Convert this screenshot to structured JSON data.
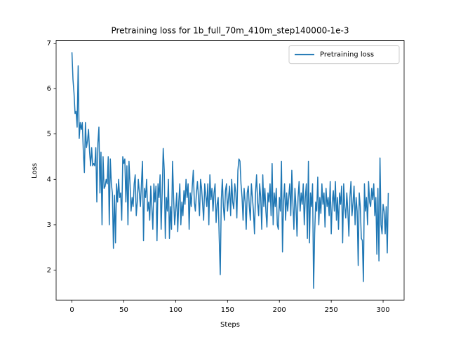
{
  "chart_data": {
    "type": "line",
    "title": "Pretraining loss for 1b_full_70m_410m_step140000-1e-3",
    "x_label": "Steps",
    "y_label": "Loss",
    "x": [
      0,
      1,
      2,
      3,
      4,
      5,
      6,
      7,
      8,
      9,
      10,
      11,
      12,
      13,
      14,
      15,
      16,
      17,
      18,
      19,
      20,
      21,
      22,
      23,
      24,
      25,
      26,
      27,
      28,
      29,
      30,
      31,
      32,
      33,
      34,
      35,
      36,
      37,
      38,
      39,
      40,
      41,
      42,
      43,
      44,
      45,
      46,
      47,
      48,
      49,
      50,
      51,
      52,
      53,
      54,
      55,
      56,
      57,
      58,
      59,
      60,
      61,
      62,
      63,
      64,
      65,
      66,
      67,
      68,
      69,
      70,
      71,
      72,
      73,
      74,
      75,
      76,
      77,
      78,
      79,
      80,
      81,
      82,
      83,
      84,
      85,
      86,
      87,
      88,
      89,
      90,
      91,
      92,
      93,
      94,
      95,
      96,
      97,
      98,
      99,
      100,
      101,
      102,
      103,
      104,
      105,
      106,
      107,
      108,
      109,
      110,
      111,
      112,
      113,
      114,
      115,
      116,
      117,
      118,
      119,
      120,
      121,
      122,
      123,
      124,
      125,
      126,
      127,
      128,
      129,
      130,
      131,
      132,
      133,
      134,
      135,
      136,
      137,
      138,
      139,
      140,
      141,
      142,
      143,
      144,
      145,
      146,
      147,
      148,
      149,
      150,
      151,
      152,
      153,
      154,
      155,
      156,
      157,
      158,
      159,
      160,
      161,
      162,
      163,
      164,
      165,
      166,
      167,
      168,
      169,
      170,
      171,
      172,
      173,
      174,
      175,
      176,
      177,
      178,
      179,
      180,
      181,
      182,
      183,
      184,
      185,
      186,
      187,
      188,
      189,
      190,
      191,
      192,
      193,
      194,
      195,
      196,
      197,
      198,
      199,
      200,
      201,
      202,
      203,
      204,
      205,
      206,
      207,
      208,
      209,
      210,
      211,
      212,
      213,
      214,
      215,
      216,
      217,
      218,
      219,
      220,
      221,
      222,
      223,
      224,
      225,
      226,
      227,
      228,
      229,
      230,
      231,
      232,
      233,
      234,
      235,
      236,
      237,
      238,
      239,
      240,
      241,
      242,
      243,
      244,
      245,
      246,
      247,
      248,
      249,
      250,
      251,
      252,
      253,
      254,
      255,
      256,
      257,
      258,
      259,
      260,
      261,
      262,
      263,
      264,
      265,
      266,
      267,
      268,
      269,
      270,
      271,
      272,
      273,
      274,
      275,
      276,
      277,
      278,
      279,
      280,
      281,
      282,
      283,
      284,
      285,
      286,
      287,
      288,
      289,
      290,
      291,
      292,
      293,
      294,
      295,
      296,
      297,
      298,
      299,
      300,
      301,
      302,
      303,
      304,
      305
    ],
    "series": [
      {
        "name": "Pretraining loss",
        "color": "#1f77b4",
        "values": [
          6.8,
          6.2,
          5.9,
          5.45,
          5.5,
          5.15,
          6.5,
          4.9,
          5.25,
          5.1,
          5.25,
          4.6,
          4.15,
          5.25,
          4.7,
          4.85,
          5.1,
          4.6,
          4.3,
          4.7,
          4.3,
          4.35,
          4.3,
          4.7,
          3.5,
          4.8,
          5.15,
          3.7,
          4.6,
          3.0,
          4.5,
          3.8,
          3.85,
          4.0,
          3.9,
          4.5,
          3.0,
          4.45,
          3.9,
          3.7,
          2.48,
          3.65,
          2.6,
          3.9,
          3.5,
          4.0,
          3.6,
          3.7,
          3.1,
          4.5,
          4.35,
          4.45,
          3.5,
          4.3,
          3.0,
          4.4,
          3.9,
          3.3,
          3.6,
          3.4,
          3.9,
          4.1,
          3.2,
          3.5,
          4.0,
          3.7,
          3.4,
          3.9,
          4.4,
          2.65,
          3.8,
          3.6,
          4.0,
          3.3,
          3.5,
          3.1,
          3.85,
          3.4,
          2.9,
          3.9,
          3.5,
          3.85,
          2.65,
          3.9,
          3.6,
          4.1,
          2.9,
          3.7,
          4.68,
          4.2,
          2.7,
          3.6,
          3.3,
          4.0,
          2.7,
          3.4,
          2.9,
          4.4,
          3.6,
          3.0,
          3.3,
          3.7,
          2.85,
          3.5,
          3.9,
          3.0,
          3.5,
          3.2,
          3.75,
          3.45,
          4.0,
          3.6,
          3.9,
          2.9,
          3.7,
          3.4,
          3.85,
          4.2,
          3.5,
          3.3,
          3.7,
          3.95,
          3.6,
          3.2,
          4.0,
          3.8,
          3.45,
          3.1,
          3.9,
          3.65,
          3.4,
          3.9,
          3.0,
          4.1,
          3.55,
          3.8,
          3.3,
          3.7,
          3.9,
          3.05,
          3.45,
          3.6,
          2.7,
          1.9,
          3.55,
          4.0,
          3.4,
          3.1,
          3.75,
          3.9,
          3.3,
          3.6,
          3.85,
          3.2,
          4.0,
          3.5,
          3.35,
          3.9,
          3.7,
          3.15,
          4.2,
          4.45,
          4.4,
          3.9,
          3.6,
          3.1,
          3.8,
          3.5,
          2.9,
          3.7,
          3.85,
          3.4,
          3.1,
          3.9,
          3.6,
          3.3,
          2.8,
          3.7,
          4.1,
          3.5,
          3.2,
          3.9,
          3.6,
          2.9,
          4.1,
          3.4,
          3.8,
          3.3,
          2.95,
          3.7,
          3.5,
          3.9,
          3.2,
          4.35,
          3.0,
          3.7,
          3.4,
          3.8,
          3.0,
          2.9,
          3.6,
          3.3,
          4.4,
          2.4,
          3.5,
          3.9,
          3.1,
          3.7,
          3.3,
          3.6,
          3.9,
          3.2,
          4.2,
          3.5,
          2.9,
          3.8,
          3.4,
          2.75,
          3.6,
          3.95,
          3.3,
          3.7,
          3.45,
          3.9,
          3.0,
          3.6,
          3.9,
          2.7,
          4.4,
          2.6,
          3.7,
          3.4,
          3.9,
          1.6,
          2.8,
          3.5,
          3.3,
          4.05,
          3.0,
          3.6,
          3.25,
          3.9,
          3.45,
          3.7,
          2.95,
          3.8,
          3.4,
          3.6,
          3.2,
          3.95,
          2.8,
          3.5,
          3.75,
          3.3,
          3.95,
          3.1,
          3.6,
          2.9,
          3.7,
          3.45,
          3.85,
          2.6,
          3.9,
          3.4,
          3.15,
          3.7,
          3.3,
          2.75,
          3.6,
          3.95,
          3.2,
          3.5,
          3.85,
          3.0,
          3.6,
          3.3,
          2.1,
          3.7,
          3.4,
          2.7,
          2.65,
          1.75,
          3.9,
          3.3,
          3.6,
          3.0,
          3.95,
          3.5,
          3.4,
          3.8,
          3.55,
          3.9,
          3.2,
          3.6,
          2.35,
          3.8,
          2.2,
          4.47,
          3.0,
          2.8,
          3.45,
          3.3,
          2.8,
          3.4,
          2.38,
          3.7
        ]
      }
    ],
    "xlim": [
      -15.25,
      320.25
    ],
    "ylim": [
      1.34,
      7.06
    ],
    "xticks": [
      0,
      50,
      100,
      150,
      200,
      250,
      300
    ],
    "yticks": [
      2,
      3,
      4,
      5,
      6,
      7
    ],
    "legend": "upper right"
  }
}
